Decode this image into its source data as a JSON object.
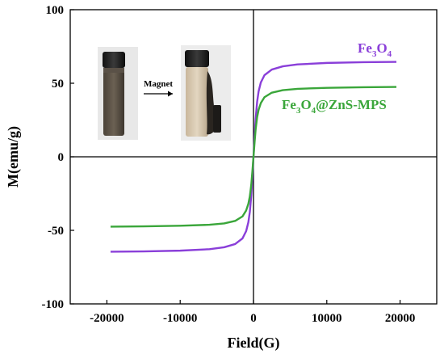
{
  "colors": {
    "fe3o4": "#8a3fd9",
    "fe3o4_znsmps": "#3aa63a",
    "axis": "#000000"
  },
  "chart_data": {
    "type": "line",
    "title": "",
    "xlabel": "Field(G)",
    "ylabel": "M(emu/g)",
    "xlim": [
      -25000,
      25000
    ],
    "ylim": [
      -100,
      100
    ],
    "x_ticks": [
      -20000,
      -10000,
      0,
      10000,
      20000
    ],
    "x_tick_labels": [
      "-20000",
      "-10000",
      "0",
      "10000",
      "20000"
    ],
    "y_ticks": [
      -100,
      -50,
      0,
      50,
      100
    ],
    "y_tick_labels": [
      "-100",
      "-50",
      "0",
      "50",
      "100"
    ],
    "grid": false,
    "series": [
      {
        "key": "fe3o4",
        "label_main": "Fe",
        "label_sub1": "3",
        "label_mid": "O",
        "label_sub2": "4",
        "label_tail": "",
        "color": "#8a3fd9",
        "x": [
          -19500,
          -15000,
          -10000,
          -6000,
          -4000,
          -2500,
          -1500,
          -1000,
          -700,
          -500,
          -300,
          -150,
          0,
          150,
          300,
          500,
          700,
          1000,
          1500,
          2500,
          4000,
          6000,
          10000,
          15000,
          19500
        ],
        "y": [
          -64.5,
          -64.3,
          -63.8,
          -62.8,
          -61.5,
          -59.3,
          -55.5,
          -50.5,
          -44.5,
          -37.5,
          -26.0,
          -14.0,
          0,
          14.0,
          26.0,
          37.5,
          44.5,
          50.5,
          55.5,
          59.3,
          61.5,
          62.8,
          63.8,
          64.3,
          64.5
        ]
      },
      {
        "key": "fe3o4_znsmps",
        "label_main": "Fe",
        "label_sub1": "3",
        "label_mid": "O",
        "label_sub2": "4",
        "label_tail": "@ZnS-MPS",
        "color": "#3aa63a",
        "x": [
          -19500,
          -15000,
          -10000,
          -6000,
          -4000,
          -2500,
          -1500,
          -1000,
          -700,
          -500,
          -300,
          -150,
          0,
          150,
          300,
          500,
          700,
          1000,
          1500,
          2500,
          4000,
          6000,
          10000,
          15000,
          19500
        ],
        "y": [
          -47.5,
          -47.3,
          -46.9,
          -46.2,
          -45.3,
          -43.6,
          -40.5,
          -36.5,
          -32.0,
          -27.0,
          -19.0,
          -10.0,
          0,
          10.0,
          19.0,
          27.0,
          32.0,
          36.5,
          40.5,
          43.6,
          45.3,
          46.2,
          46.9,
          47.3,
          47.5
        ]
      }
    ],
    "inset": {
      "arrow_label": "Magnet"
    }
  }
}
